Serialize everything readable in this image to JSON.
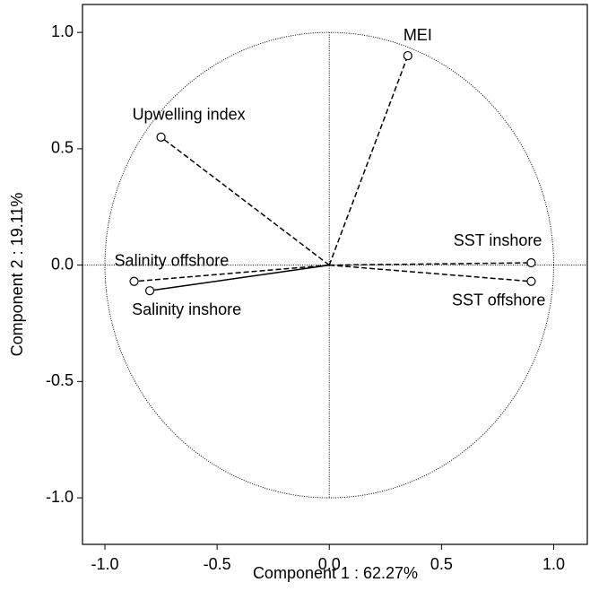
{
  "chart_data": {
    "type": "correlation-circle",
    "x_label": "Component 1 : 62.27%",
    "y_label": "Component 2 : 19.11%",
    "xlim": [
      -1.1,
      1.15
    ],
    "ylim": [
      -1.2,
      1.12
    ],
    "xticks": [
      {
        "value": -1,
        "label": "-1.0"
      },
      {
        "value": -0.5,
        "label": "-0.5"
      },
      {
        "value": 0,
        "label": "0.0"
      },
      {
        "value": 0.5,
        "label": "0.5"
      },
      {
        "value": 1,
        "label": "1.0"
      }
    ],
    "yticks": [
      {
        "value": -1,
        "label": "-1.0"
      },
      {
        "value": -0.5,
        "label": "-0.5"
      },
      {
        "value": 0,
        "label": "0.0"
      },
      {
        "value": 0.5,
        "label": "0.5"
      },
      {
        "value": 1,
        "label": "1.0"
      }
    ],
    "color": "#000000",
    "points": [
      {
        "label": "MEI",
        "x": 0.35,
        "y": 0.9,
        "line": "dashed"
      },
      {
        "label": "Upwelling index",
        "x": -0.75,
        "y": 0.55,
        "line": "dashed"
      },
      {
        "label": "SST inshore",
        "x": 0.9,
        "y": 0.01,
        "line": "dashed"
      },
      {
        "label": "SST offshore",
        "x": 0.9,
        "y": -0.07,
        "line": "dashed"
      },
      {
        "label": "Salinity offshore",
        "x": -0.87,
        "y": -0.07,
        "line": "dashed"
      },
      {
        "label": "Salinity inshore",
        "x": -0.8,
        "y": -0.11,
        "line": "solid"
      }
    ]
  }
}
